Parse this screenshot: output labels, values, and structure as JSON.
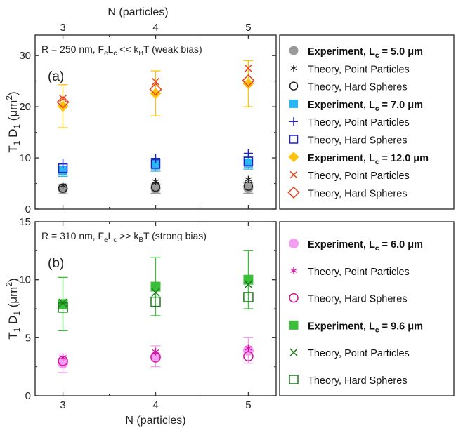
{
  "chart_data": [
    {
      "type": "scatter",
      "panel_label": "(a)",
      "annotation": "R = 250 nm, F<sub>e</sub>L<sub>c</sub> << k<sub>B</sub>T (weak bias)",
      "annotation_parts": [
        "R = 250 nm, F",
        "e",
        "L",
        "c",
        " << k",
        "B",
        "T (weak bias)"
      ],
      "top_xlabel": "N (particles)",
      "ylabel_parts": [
        "T",
        "1",
        " D",
        "1",
        " (μm",
        "2",
        ")"
      ],
      "x": [
        3,
        4,
        5
      ],
      "xticks": [
        "3",
        "4",
        "5"
      ],
      "xlim": [
        2.7,
        5.3
      ],
      "ylim": [
        0,
        34
      ],
      "yticks": [
        0,
        10,
        20,
        30
      ],
      "series": [
        {
          "name": "Experiment, Lc = 5.0 μm",
          "marker": "filled-circle",
          "color": "#9a9a9a",
          "values": [
            3.9,
            4.0,
            4.1
          ],
          "errors": [
            0.9,
            0.9,
            1.0
          ]
        },
        {
          "name": "Theory, Point Particles",
          "marker": "asterisk",
          "color": "#222222",
          "values": [
            4.6,
            5.4,
            5.8
          ]
        },
        {
          "name": "Theory, Hard Spheres",
          "marker": "open-circle",
          "color": "#222222",
          "values": [
            4.1,
            4.3,
            4.5
          ]
        },
        {
          "name": "Experiment, Lc = 7.0 μm",
          "marker": "filled-square",
          "color": "#29b6f2",
          "values": [
            7.6,
            8.6,
            9.0
          ],
          "errors": [
            1.2,
            1.2,
            1.2
          ]
        },
        {
          "name": "Theory, Point Particles",
          "marker": "plus",
          "color": "#2020c8",
          "values": [
            8.9,
            9.9,
            10.9
          ]
        },
        {
          "name": "Theory, Hard Spheres",
          "marker": "open-square",
          "color": "#2020c8",
          "values": [
            8.0,
            8.8,
            9.3
          ]
        },
        {
          "name": "Experiment, Lc = 12.0 μm",
          "marker": "filled-diamond",
          "color": "#ffc20e",
          "values": [
            20.1,
            22.6,
            24.5
          ],
          "errors": [
            4.2,
            4.4,
            4.5
          ]
        },
        {
          "name": "Theory, Point Particles",
          "marker": "x",
          "color": "#e8421a",
          "values": [
            21.6,
            24.9,
            27.5
          ]
        },
        {
          "name": "Theory, Hard Spheres",
          "marker": "open-diamond",
          "color": "#e8421a",
          "values": [
            20.9,
            23.4,
            25.1
          ]
        }
      ]
    },
    {
      "type": "scatter",
      "panel_label": "(b)",
      "annotation_parts": [
        "R = 310 nm, F",
        "e",
        "L",
        "c",
        " >> k",
        "B",
        "T (strong bias)"
      ],
      "xlabel": "N (particles)",
      "ylabel_parts": [
        "T",
        "1",
        " D",
        "1",
        " (μm",
        "2",
        ")"
      ],
      "x": [
        3,
        4,
        5
      ],
      "xticks": [
        "3",
        "4",
        "5"
      ],
      "xlim": [
        2.7,
        5.3
      ],
      "ylim": [
        0,
        15
      ],
      "yticks": [
        0,
        5,
        10,
        15
      ],
      "series": [
        {
          "name": "Experiment, Lc = 6.0 μm",
          "marker": "filled-circle",
          "color": "#f59df0",
          "values": [
            2.8,
            3.4,
            3.9
          ],
          "errors": [
            0.8,
            0.9,
            1.1
          ]
        },
        {
          "name": "Theory, Point Particles",
          "marker": "asterisk",
          "color": "#d4149c",
          "values": [
            3.3,
            3.8,
            4.1
          ]
        },
        {
          "name": "Theory, Hard Spheres",
          "marker": "open-circle",
          "color": "#d4149c",
          "values": [
            3.0,
            3.3,
            3.4
          ]
        },
        {
          "name": "Experiment, Lc = 9.6 μm",
          "marker": "filled-square",
          "color": "#3bbf3b",
          "values": [
            7.9,
            9.4,
            10.0
          ],
          "errors": [
            2.3,
            2.5,
            2.5
          ]
        },
        {
          "name": "Theory, Point Particles",
          "marker": "x",
          "color": "#1b7a1b",
          "values": [
            8.0,
            8.9,
            9.6
          ]
        },
        {
          "name": "Theory, Hard Spheres",
          "marker": "open-square",
          "color": "#1b7a1b",
          "values": [
            7.6,
            8.1,
            8.5
          ]
        }
      ]
    }
  ],
  "legend_a": [
    {
      "pre": "Experiment, L",
      "sub": "c",
      "post": " = 5.0 μm",
      "bold": true
    },
    {
      "pre": "Theory, Point Particles",
      "bold": false
    },
    {
      "pre": "Theory, Hard Spheres",
      "bold": false
    },
    {
      "pre": "Experiment, L",
      "sub": "c",
      "post": " = 7.0 μm",
      "bold": true
    },
    {
      "pre": "Theory, Point Particles",
      "bold": false
    },
    {
      "pre": "Theory, Hard Spheres",
      "bold": false
    },
    {
      "pre": "Experiment, L",
      "sub": "c",
      "post": " = 12.0 μm",
      "bold": true
    },
    {
      "pre": "Theory, Point Particles",
      "bold": false
    },
    {
      "pre": "Theory, Hard Spheres",
      "bold": false
    }
  ],
  "legend_b": [
    {
      "pre": "Experiment, L",
      "sub": "c",
      "post": " = 6.0 μm",
      "bold": true
    },
    {
      "pre": "Theory, Point Particles",
      "bold": false
    },
    {
      "pre": "Theory, Hard Spheres",
      "bold": false
    },
    {
      "pre": "Experiment, L",
      "sub": "c",
      "post": " = 9.6 μm",
      "bold": true
    },
    {
      "pre": "Theory, Point Particles",
      "bold": false
    },
    {
      "pre": "Theory, Hard Spheres",
      "bold": false
    }
  ]
}
